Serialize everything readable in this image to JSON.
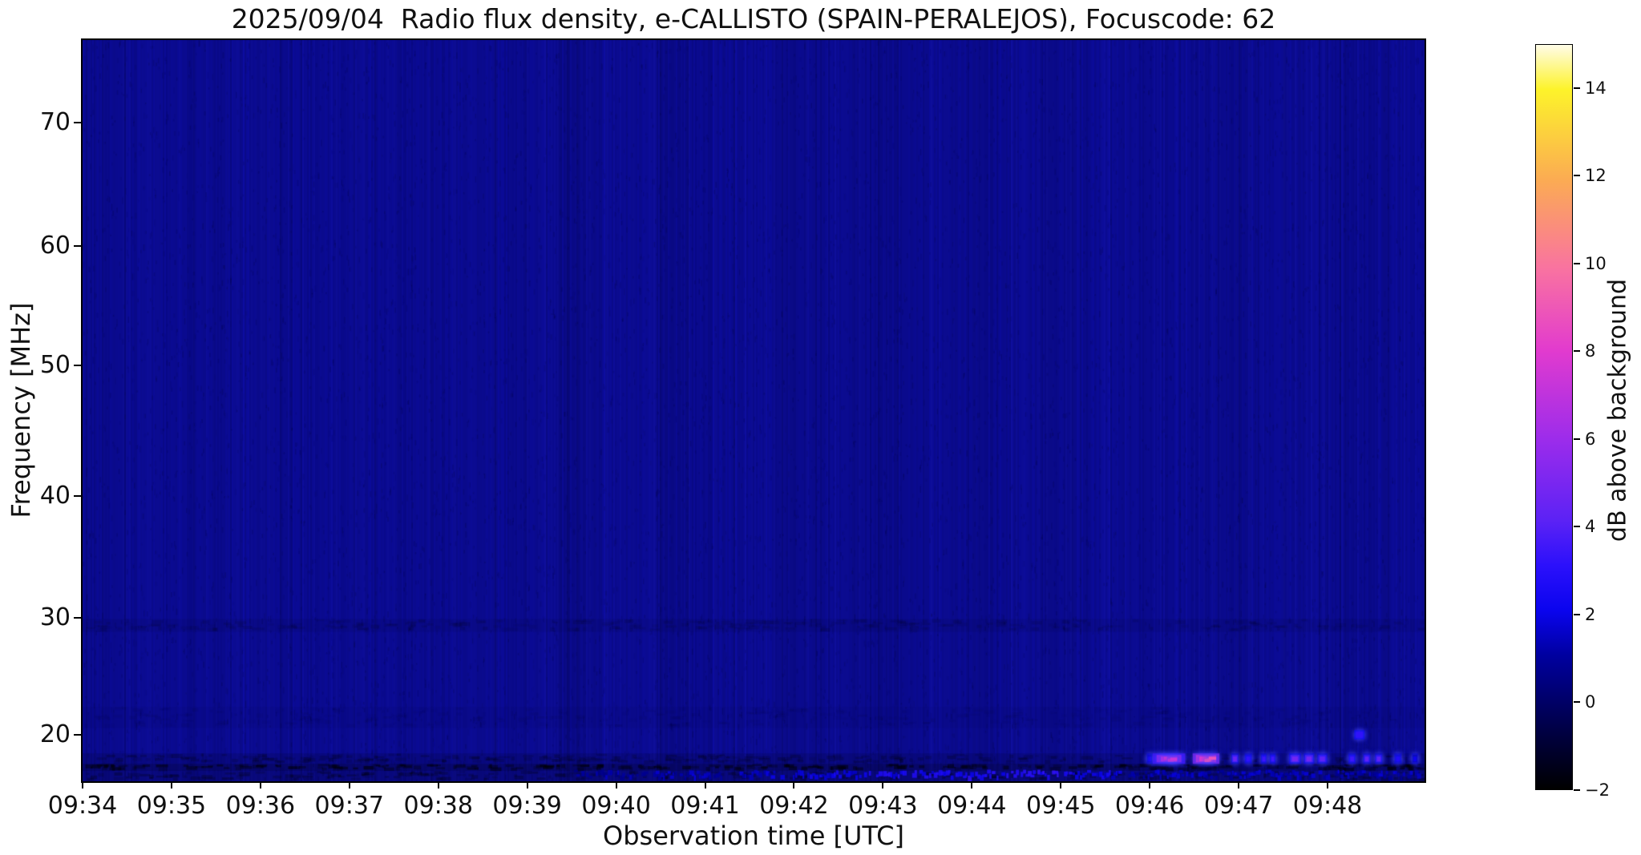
{
  "chart_data": {
    "type": "heatmap",
    "title": "2025/09/04  Radio flux density, e-CALLISTO (SPAIN-PERALEJOS), Focuscode: 62",
    "xlabel": "Observation time [UTC]",
    "ylabel": "Frequency [MHz]",
    "x_ticks": [
      {
        "label": "09:34",
        "minute": 0
      },
      {
        "label": "09:35",
        "minute": 1
      },
      {
        "label": "09:36",
        "minute": 2
      },
      {
        "label": "09:37",
        "minute": 3
      },
      {
        "label": "09:38",
        "minute": 4
      },
      {
        "label": "09:39",
        "minute": 5
      },
      {
        "label": "09:40",
        "minute": 6
      },
      {
        "label": "09:41",
        "minute": 7
      },
      {
        "label": "09:42",
        "minute": 8
      },
      {
        "label": "09:43",
        "minute": 9
      },
      {
        "label": "09:44",
        "minute": 10
      },
      {
        "label": "09:45",
        "minute": 11
      },
      {
        "label": "09:46",
        "minute": 12
      },
      {
        "label": "09:47",
        "minute": 13
      },
      {
        "label": "09:48",
        "minute": 14
      }
    ],
    "x_range_minutes": [
      0,
      15.1
    ],
    "y_ticks": [
      {
        "label": "70",
        "mhz": 70
      },
      {
        "label": "60",
        "mhz": 60
      },
      {
        "label": "50",
        "mhz": 50
      },
      {
        "label": "40",
        "mhz": 40
      },
      {
        "label": "30",
        "mhz": 30
      },
      {
        "label": "20",
        "mhz": 20
      }
    ],
    "freq_range_mhz": [
      16.0,
      76.7
    ],
    "background_db": 0.3,
    "background_color": "#0c0c99",
    "colorbar": {
      "label": "dB above background",
      "range": [
        -2,
        15
      ],
      "ticks": [
        {
          "label": "14",
          "value": 14
        },
        {
          "label": "12",
          "value": 12
        },
        {
          "label": "10",
          "value": 10
        },
        {
          "label": "8",
          "value": 8
        },
        {
          "label": "6",
          "value": 6
        },
        {
          "label": "4",
          "value": 4
        },
        {
          "label": "2",
          "value": 2
        },
        {
          "label": "0",
          "value": 0
        },
        {
          "label": "−2",
          "value": -2
        }
      ],
      "stops": [
        [
          0.0,
          "#000000"
        ],
        [
          0.09,
          "#00004e"
        ],
        [
          0.18,
          "#0000a0"
        ],
        [
          0.24,
          "#0a04ee"
        ],
        [
          0.3,
          "#2b10fb"
        ],
        [
          0.36,
          "#5b22f5"
        ],
        [
          0.47,
          "#9c2ceb"
        ],
        [
          0.59,
          "#e23bce"
        ],
        [
          0.7,
          "#f973a0"
        ],
        [
          0.82,
          "#fbac52"
        ],
        [
          0.94,
          "#fdf32a"
        ],
        [
          1.0,
          "#fffce8"
        ]
      ]
    },
    "bands": [
      {
        "f0": 28.8,
        "f1": 29.9,
        "alpha": 0.1,
        "dashed": true
      },
      {
        "f0": 20.6,
        "f1": 22.4,
        "alpha": 0.05,
        "dashed": true
      },
      {
        "f0": 17.5,
        "f1": 18.4,
        "alpha": 0.18,
        "dashed": true
      },
      {
        "f0": 16.9,
        "f1": 17.5,
        "alpha": 0.4,
        "dashed": true
      },
      {
        "f0": 16.0,
        "f1": 16.9,
        "alpha": 0.22,
        "dashed": true
      }
    ],
    "bottom_line_mhz": [
      16.2,
      17.0
    ],
    "bottom_line_segments": [
      {
        "t0": 330,
        "t1": 380,
        "db": 1.0
      },
      {
        "t0": 385,
        "t1": 432,
        "db": 1.3
      },
      {
        "t0": 440,
        "t1": 472,
        "db": 1.6
      },
      {
        "t0": 476,
        "t1": 522,
        "db": 1.9
      },
      {
        "t0": 524,
        "t1": 592,
        "db": 2.4
      },
      {
        "t0": 594,
        "t1": 666,
        "db": 2.7
      },
      {
        "t0": 668,
        "t1": 702,
        "db": 2.0
      },
      {
        "t0": 704,
        "t1": 905,
        "db": 1.3
      }
    ],
    "burst_band_mhz": [
      17.5,
      18.4
    ],
    "bursts": [
      {
        "t": 718,
        "w": 4,
        "db": 2.5,
        "core": false
      },
      {
        "t": 722,
        "w": 22,
        "db": 6.5,
        "core": true
      },
      {
        "t": 749,
        "w": 18,
        "db": 8.0,
        "core": true
      },
      {
        "t": 775,
        "w": 5,
        "db": 4.5,
        "core": false
      },
      {
        "t": 784,
        "w": 5,
        "db": 3.2,
        "core": false
      },
      {
        "t": 795,
        "w": 4,
        "db": 3.5,
        "core": false
      },
      {
        "t": 801,
        "w": 4,
        "db": 3.5,
        "core": false
      },
      {
        "t": 814,
        "w": 8,
        "db": 4.8,
        "core": false
      },
      {
        "t": 824,
        "w": 7,
        "db": 4.8,
        "core": false
      },
      {
        "t": 833,
        "w": 7,
        "db": 4.2,
        "core": false
      },
      {
        "t": 854,
        "w": 5,
        "db": 3.5,
        "core": false
      },
      {
        "t": 864,
        "w": 5,
        "db": 4.2,
        "core": false
      },
      {
        "t": 872,
        "w": 5,
        "db": 4.2,
        "core": false
      },
      {
        "t": 885,
        "w": 5,
        "db": 2.8,
        "core": false
      },
      {
        "t": 897,
        "w": 4,
        "db": 2.2,
        "core": false
      }
    ],
    "spots": [
      {
        "t": 858,
        "w": 7,
        "f0": 19.6,
        "f1": 20.4,
        "db": 3.2
      }
    ]
  }
}
